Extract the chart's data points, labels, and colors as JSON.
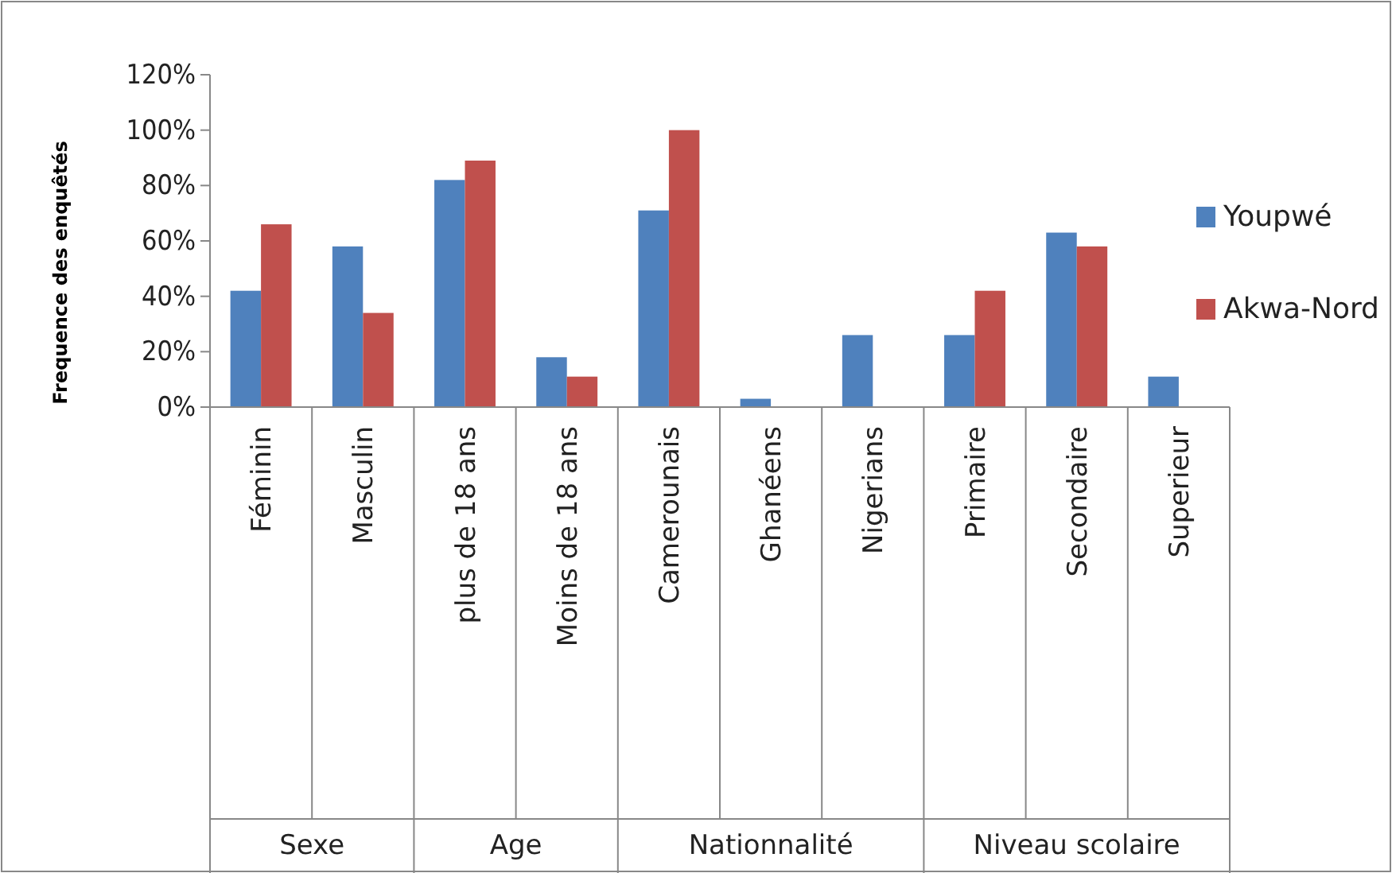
{
  "chart_data": {
    "type": "bar",
    "ylabel": "Frequence des enquêtés",
    "categories": [
      "Féminin",
      "Masculin",
      "plus de 18 ans",
      "Moins de 18 ans",
      "Camerounais",
      "Ghanéens",
      "Nigerians",
      "Primaire",
      "Secondaire",
      "Superieur"
    ],
    "series": [
      {
        "name": "Youpwé",
        "color": "#4f81bd",
        "values": [
          42,
          58,
          82,
          18,
          71,
          3,
          26,
          26,
          63,
          11
        ]
      },
      {
        "name": "Akwa-Nord",
        "color": "#c0504d",
        "values": [
          66,
          34,
          89,
          11,
          100,
          null,
          null,
          42,
          58,
          null
        ]
      }
    ],
    "ylim": [
      0,
      120
    ],
    "yticks": [
      {
        "value": 0,
        "label": "0%"
      },
      {
        "value": 20,
        "label": "20%"
      },
      {
        "value": 40,
        "label": "40%"
      },
      {
        "value": 60,
        "label": "60%"
      },
      {
        "value": 80,
        "label": "80%"
      },
      {
        "value": 100,
        "label": "100%"
      },
      {
        "value": 120,
        "label": "120%"
      }
    ],
    "annotations": [
      "Sexe",
      "Age",
      "Nationnalité",
      "Niveau scolaire"
    ],
    "legend": "right"
  }
}
